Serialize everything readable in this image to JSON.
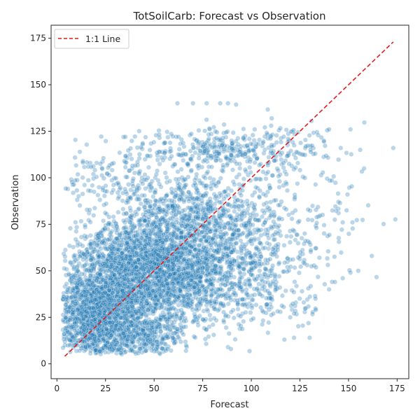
{
  "chart_data": {
    "type": "scatter",
    "title": "TotSoilCarb: Forecast vs Observation",
    "xlabel": "Forecast",
    "ylabel": "Observation",
    "xlim": [
      -3,
      181
    ],
    "ylim": [
      -8,
      182
    ],
    "xticks": [
      0,
      25,
      50,
      75,
      100,
      125,
      150,
      175
    ],
    "yticks": [
      0,
      25,
      50,
      75,
      100,
      125,
      150,
      175
    ],
    "grid": false,
    "legend": {
      "placement": "top-left",
      "entries": [
        {
          "label": "1:1 Line",
          "color": "#e41a1c",
          "style": "dashed"
        }
      ]
    },
    "reference_line": {
      "label": "1:1 Line",
      "from": [
        4,
        4
      ],
      "to": [
        173,
        173
      ],
      "color": "#e41a1c"
    },
    "point_color": "#1f77b4",
    "point_alpha": 0.3,
    "clusters": [
      {
        "cx": 28,
        "cy": 35,
        "sx": 13,
        "sy": 16,
        "n": 1600
      },
      {
        "cx": 18,
        "cy": 22,
        "sx": 8,
        "sy": 12,
        "n": 700
      },
      {
        "cx": 55,
        "cy": 48,
        "sx": 15,
        "sy": 14,
        "n": 1300
      },
      {
        "cx": 80,
        "cy": 48,
        "sx": 16,
        "sy": 14,
        "n": 600
      },
      {
        "cx": 42,
        "cy": 62,
        "sx": 16,
        "sy": 10,
        "n": 500
      },
      {
        "cx": 68,
        "cy": 85,
        "sx": 18,
        "sy": 10,
        "n": 450
      },
      {
        "cx": 92,
        "cy": 70,
        "sx": 22,
        "sy": 10,
        "n": 350
      },
      {
        "cx": 85,
        "cy": 115,
        "sx": 25,
        "sy": 6,
        "n": 350
      },
      {
        "cx": 30,
        "cy": 100,
        "sx": 14,
        "sy": 8,
        "n": 120
      },
      {
        "cx": 110,
        "cy": 40,
        "sx": 15,
        "sy": 12,
        "n": 150
      },
      {
        "cx": 125,
        "cy": 95,
        "sx": 20,
        "sy": 20,
        "n": 150
      },
      {
        "cx": 45,
        "cy": 15,
        "sx": 10,
        "sy": 5,
        "n": 250
      }
    ],
    "points": [
      [
        173,
        116
      ],
      [
        162,
        58
      ],
      [
        155,
        50
      ],
      [
        151,
        49
      ],
      [
        147,
        46
      ],
      [
        143,
        44
      ],
      [
        140,
        40
      ],
      [
        133,
        35
      ],
      [
        130,
        14
      ],
      [
        122,
        14
      ],
      [
        117,
        13
      ],
      [
        125,
        58
      ],
      [
        135,
        57
      ],
      [
        156,
        115
      ],
      [
        158,
        105
      ],
      [
        151,
        126
      ],
      [
        146,
        116
      ],
      [
        140,
        126
      ],
      [
        62,
        140
      ],
      [
        70,
        140
      ],
      [
        77,
        140
      ],
      [
        88,
        140
      ],
      [
        84,
        140
      ],
      [
        152,
        76
      ],
      [
        147,
        76
      ],
      [
        120,
        25
      ],
      [
        122,
        27
      ],
      [
        127,
        33
      ]
    ]
  }
}
